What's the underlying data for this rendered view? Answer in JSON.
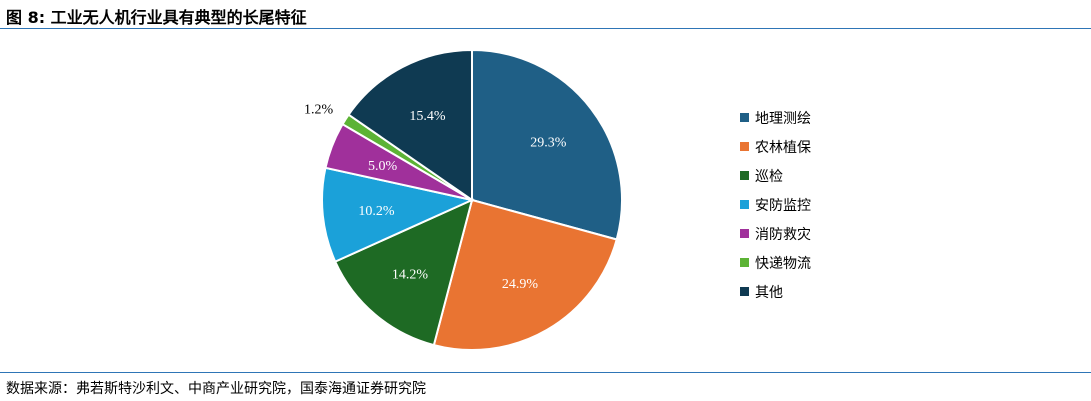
{
  "figure": {
    "title": "图 8:  工业无人机行业具有典型的长尾特征",
    "source": "数据来源：弗若斯特沙利文、中商产业研究院，国泰海通证券研究院"
  },
  "chart_data": {
    "type": "pie",
    "title": "",
    "legend_position": "right",
    "start_angle": "12 o'clock, clockwise",
    "slices": [
      {
        "label": "地理测绘",
        "value": 29.3,
        "display": "29.3%",
        "color": "#1f5f86"
      },
      {
        "label": "农林植保",
        "value": 24.9,
        "display": "24.9%",
        "color": "#e97432"
      },
      {
        "label": "巡检",
        "value": 14.2,
        "display": "14.2%",
        "color": "#1e6a24"
      },
      {
        "label": "安防监控",
        "value": 10.2,
        "display": "10.2%",
        "color": "#1ba1d9"
      },
      {
        "label": "消防救灾",
        "value": 5.0,
        "display": "5.0%",
        "color": "#a0309b"
      },
      {
        "label": "快递物流",
        "value": 1.2,
        "display": "1.2%",
        "color": "#5cb335"
      },
      {
        "label": "其他",
        "value": 15.4,
        "display": "15.4%",
        "color": "#0f3a52"
      }
    ]
  }
}
